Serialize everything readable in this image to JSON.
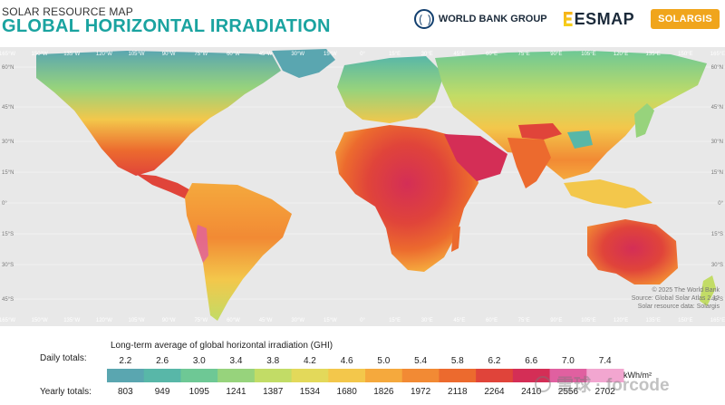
{
  "header": {
    "subtitle": "SOLAR RESOURCE MAP",
    "title": "GLOBAL HORIZONTAL IRRADIATION"
  },
  "logos": {
    "world_bank": "WORLD BANK GROUP",
    "esmap": "ESMAP",
    "solargis": "SOLARGIS"
  },
  "map": {
    "longitude_labels": [
      "165°W",
      "150°W",
      "135°W",
      "120°W",
      "105°W",
      "90°W",
      "75°W",
      "60°W",
      "45°W",
      "30°W",
      "15°W",
      "0°",
      "15°E",
      "30°E",
      "45°E",
      "60°E",
      "75°E",
      "90°E",
      "105°E",
      "120°E",
      "135°E",
      "150°E",
      "165°E"
    ],
    "latitude_labels": [
      "60°N",
      "45°N",
      "30°N",
      "15°N",
      "0°",
      "15°S",
      "30°S",
      "45°S"
    ]
  },
  "credits": {
    "line1": "© 2025 The World Bank",
    "line2": "Source: Global Solar Atlas 2.12",
    "line3": "Solar resource data: Solargis"
  },
  "legend": {
    "title": "Long-term average of global horizontal irradiation (GHI)",
    "daily_label": "Daily totals:",
    "yearly_label": "Yearly totals:",
    "unit": "kWh/m²",
    "daily": [
      "2.2",
      "2.6",
      "3.0",
      "3.4",
      "3.8",
      "4.2",
      "4.6",
      "5.0",
      "5.4",
      "5.8",
      "6.2",
      "6.6",
      "7.0",
      "7.4"
    ],
    "yearly": [
      "803",
      "949",
      "1095",
      "1241",
      "1387",
      "1534",
      "1680",
      "1826",
      "1972",
      "2118",
      "2264",
      "2410",
      "2556",
      "2702"
    ],
    "colors": [
      "#5aa6b0",
      "#58b7a8",
      "#6ec895",
      "#97d37c",
      "#c2dc66",
      "#e3d95a",
      "#f3c74b",
      "#f5a93d",
      "#f28a34",
      "#ec6a2e",
      "#e0443a",
      "#d42e56",
      "#e060a0",
      "#f2a6d0"
    ]
  },
  "watermark": {
    "text": "雪球 · forcode"
  }
}
